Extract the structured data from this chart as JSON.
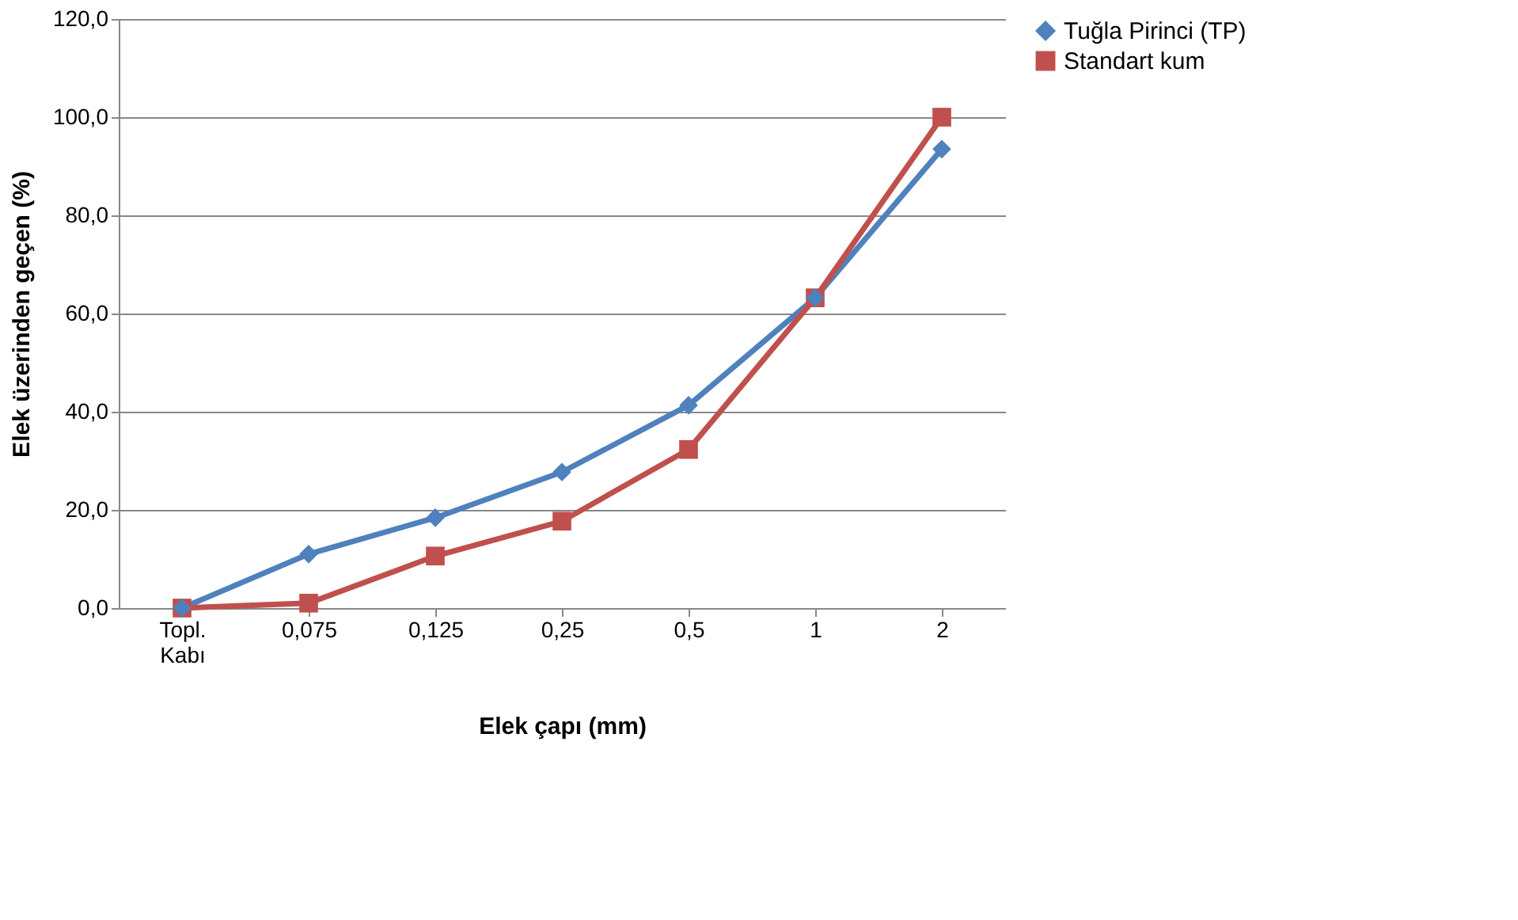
{
  "chart_data": {
    "type": "line",
    "xlabel": "Elek çapı  (mm)",
    "ylabel": "Elek üzerinden geçen (%)",
    "categories": [
      "Topl. Kabı",
      "0,075",
      "0,125",
      "0,25",
      "0,5",
      "1",
      "2"
    ],
    "series": [
      {
        "name": "Tuğla Pirinci (TP)",
        "color": "#4f81bd",
        "marker": "diamond",
        "values": [
          0,
          11.0,
          18.4,
          27.7,
          41.3,
          63.2,
          93.5
        ]
      },
      {
        "name": "Standart kum",
        "color": "#c0504d",
        "marker": "square",
        "values": [
          0,
          1.0,
          10.6,
          17.7,
          32.3,
          63.2,
          100
        ]
      }
    ],
    "ylim": [
      0,
      120
    ],
    "yticks": [
      {
        "value": 0,
        "label": "0,0"
      },
      {
        "value": 20,
        "label": "20,0"
      },
      {
        "value": 40,
        "label": "40,0"
      },
      {
        "value": 60,
        "label": "60,0"
      },
      {
        "value": 80,
        "label": "80,0"
      },
      {
        "value": 100,
        "label": "100,0"
      },
      {
        "value": 120,
        "label": "120,0"
      }
    ],
    "grid": "y",
    "legend": "right",
    "line_style": "solid"
  }
}
